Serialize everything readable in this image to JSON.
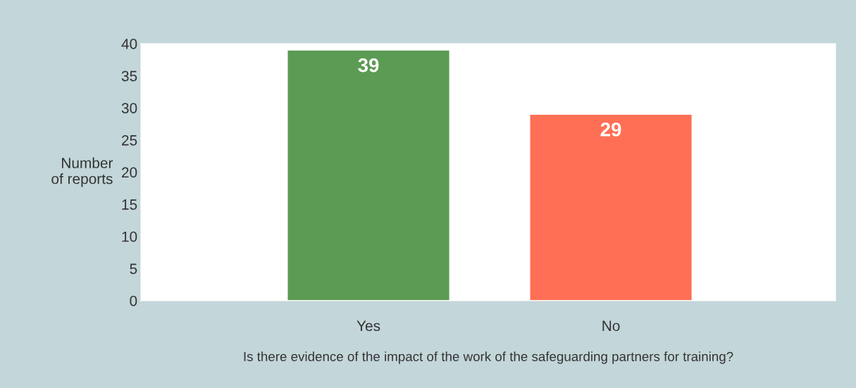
{
  "chart_data": {
    "type": "bar",
    "categories": [
      "Yes",
      "No"
    ],
    "values": [
      39,
      29
    ],
    "colors": [
      "#5b9b53",
      "#ff6f55"
    ],
    "ylabel": "Number\nof reports",
    "xlabel": "Is there evidence of the impact of the work of the safeguarding partners for training?",
    "ylim": [
      0,
      40
    ],
    "yticks": [
      0,
      5,
      10,
      15,
      20,
      25,
      30,
      35,
      40
    ],
    "data_labels": true,
    "grid": false,
    "legend": false
  }
}
